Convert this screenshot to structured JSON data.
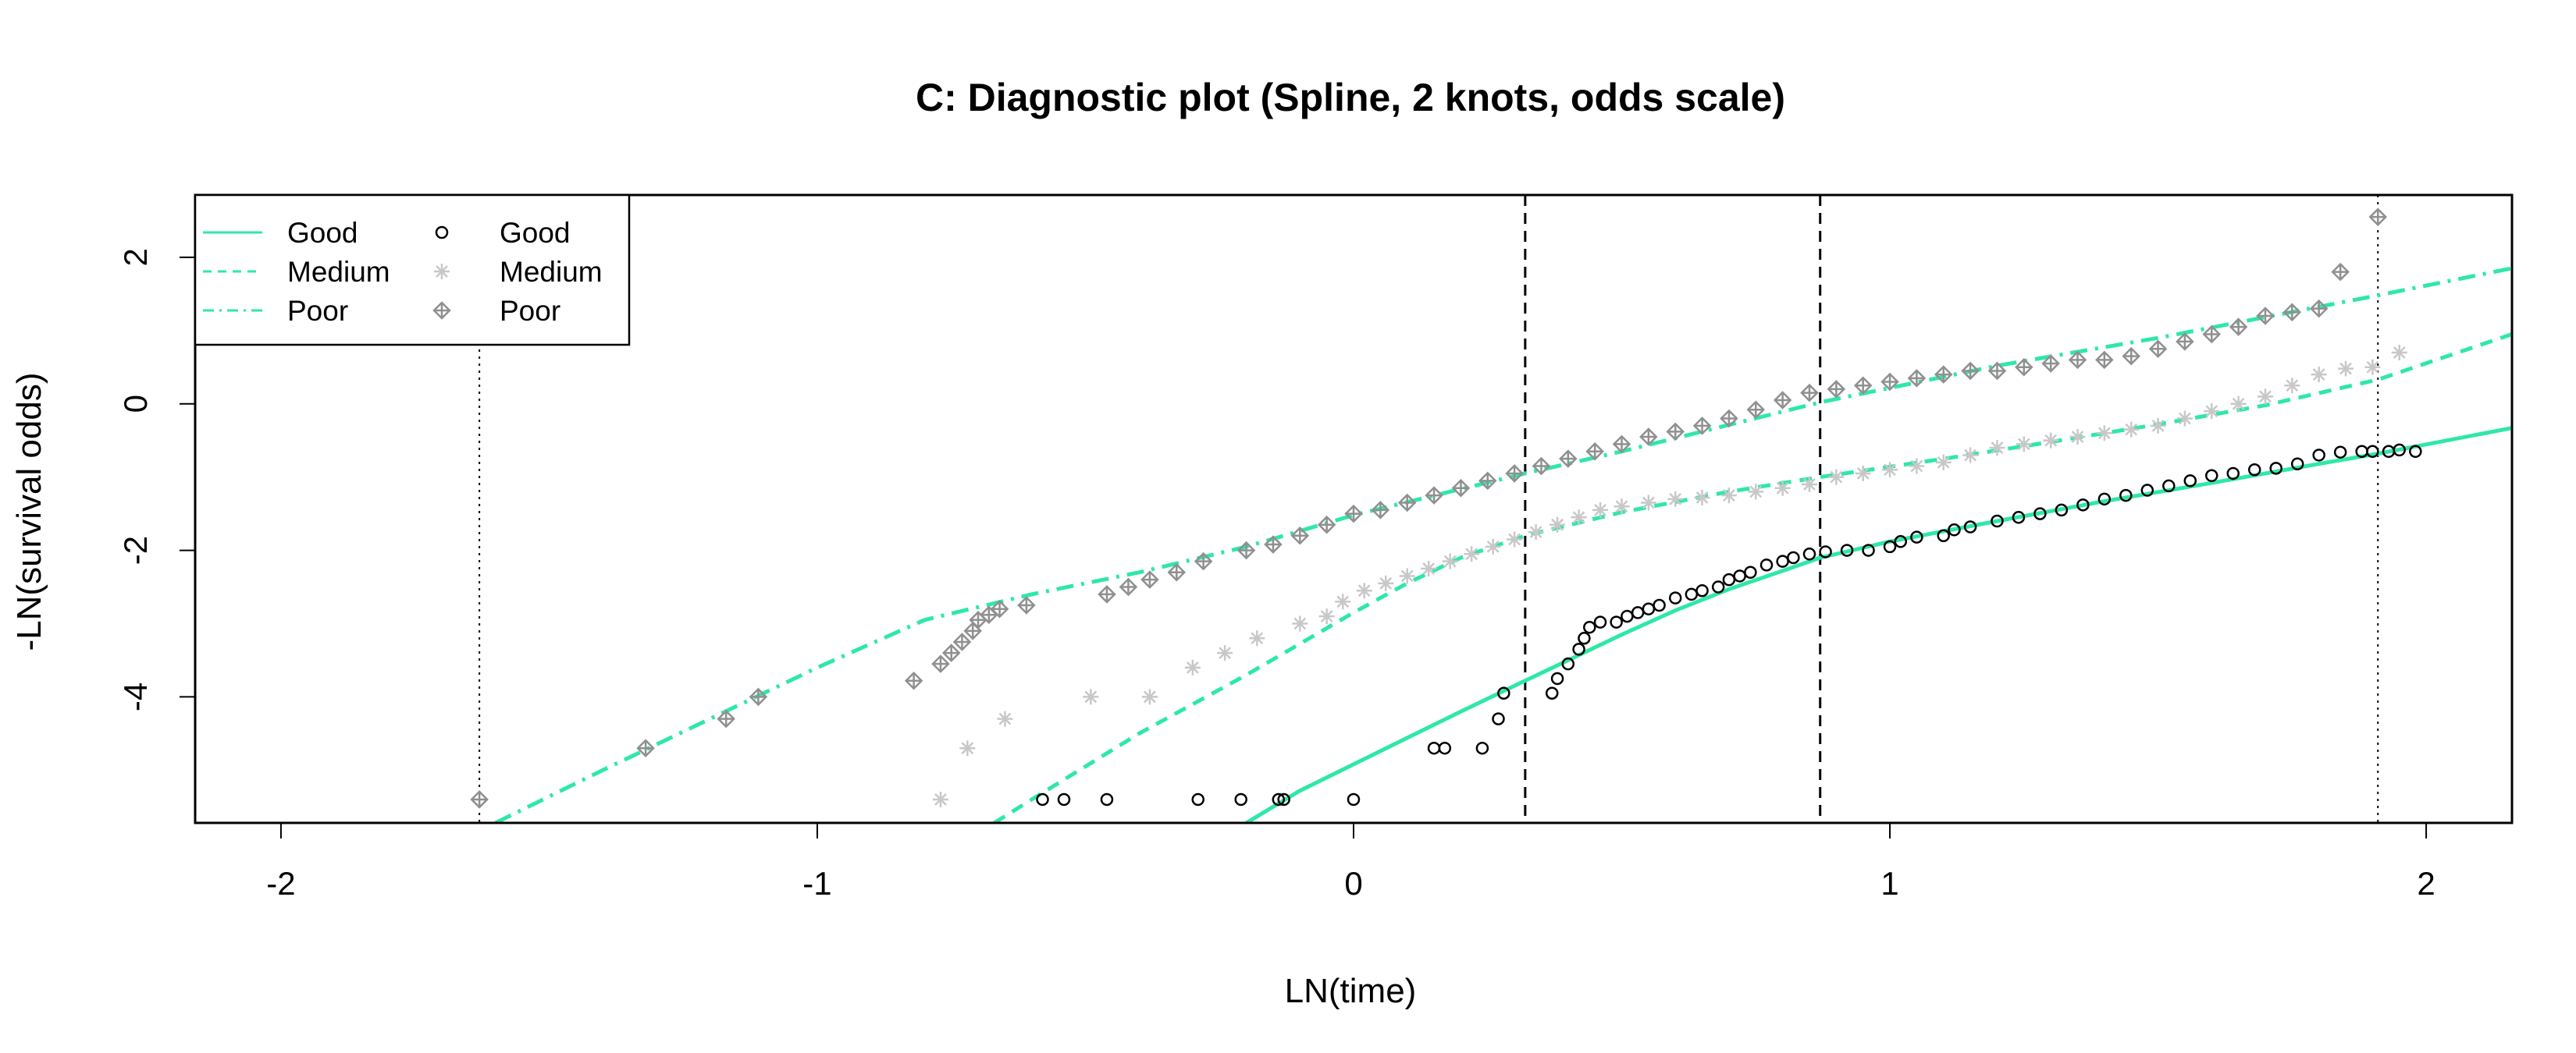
{
  "chart_data": {
    "type": "scatter",
    "title": "C: Diagnostic plot (Spline, 2 knots, odds scale)",
    "xlabel": "LN(time)",
    "ylabel": "-LN(survival odds)",
    "xlim": [
      -2.16,
      2.16
    ],
    "ylim": [
      -5.72,
      2.85
    ],
    "x_ticks": [
      -2,
      -1,
      0,
      1,
      2
    ],
    "y_ticks": [
      -4,
      -2,
      0,
      2
    ],
    "x_tick_labels": [
      "-2",
      "-1",
      "0",
      "1",
      "2"
    ],
    "y_tick_labels": [
      "-4",
      "-2",
      "0",
      "2"
    ],
    "grid": false,
    "legend_position": "top-left",
    "knot_lines": [
      0.32,
      0.87
    ],
    "boundary_lines": [
      -1.63,
      1.91
    ],
    "colors": {
      "line": "#2ee8a6",
      "good_points": "#000000",
      "medium_points": "#c8c8c8",
      "poor_points": "#909090"
    },
    "line_legend": [
      {
        "label": "Good",
        "style": "solid"
      },
      {
        "label": "Medium",
        "style": "dashed"
      },
      {
        "label": "Poor",
        "style": "dashdot"
      }
    ],
    "point_legend": [
      {
        "label": "Good",
        "marker": "circle"
      },
      {
        "label": "Medium",
        "marker": "asterisk"
      },
      {
        "label": "Poor",
        "marker": "diamond-plus"
      }
    ],
    "series_lines": [
      {
        "name": "Good",
        "style": "solid",
        "x": [
          -0.2,
          -0.1,
          0,
          0.1,
          0.2,
          0.3,
          0.4,
          0.5,
          0.6,
          0.7,
          0.8,
          0.87,
          1.0,
          1.2,
          1.4,
          1.6,
          1.8,
          1.91,
          2.16
        ],
        "y": [
          -5.72,
          -5.28,
          -4.92,
          -4.56,
          -4.2,
          -3.85,
          -3.5,
          -3.15,
          -2.82,
          -2.53,
          -2.28,
          -2.1,
          -1.88,
          -1.6,
          -1.33,
          -1.08,
          -0.82,
          -0.68,
          -0.33
        ]
      },
      {
        "name": "Medium",
        "style": "dashed",
        "x": [
          -0.67,
          -0.6,
          -0.4,
          -0.2,
          0,
          0.1,
          0.2,
          0.32,
          0.5,
          0.7,
          0.87,
          1.1,
          1.3,
          1.5,
          1.7,
          1.91,
          2.16
        ],
        "y": [
          -5.72,
          -5.4,
          -4.5,
          -3.7,
          -2.85,
          -2.45,
          -2.1,
          -1.8,
          -1.48,
          -1.2,
          -1.0,
          -0.75,
          -0.52,
          -0.28,
          -0.02,
          0.33,
          0.95
        ]
      },
      {
        "name": "Poor",
        "style": "dashdot",
        "x": [
          -1.6,
          -1.4,
          -1.2,
          -1.0,
          -0.8,
          -0.6,
          -0.4,
          -0.2,
          0,
          0.32,
          0.5,
          0.87,
          1.2,
          1.5,
          1.91,
          2.16
        ],
        "y": [
          -5.72,
          -5.0,
          -4.3,
          -3.6,
          -2.95,
          -2.6,
          -2.3,
          -1.95,
          -1.52,
          -0.95,
          -0.65,
          0.02,
          0.52,
          0.9,
          1.48,
          1.85
        ]
      }
    ],
    "series_points": [
      {
        "name": "Good",
        "marker": "circle",
        "x": [
          -0.58,
          -0.54,
          -0.46,
          -0.29,
          -0.21,
          -0.14,
          -0.13,
          0.0,
          0.15,
          0.17,
          0.24,
          0.27,
          0.28,
          0.37,
          0.38,
          0.4,
          0.42,
          0.43,
          0.44,
          0.46,
          0.49,
          0.51,
          0.53,
          0.55,
          0.57,
          0.6,
          0.63,
          0.65,
          0.68,
          0.7,
          0.72,
          0.74,
          0.77,
          0.8,
          0.82,
          0.85,
          0.88,
          0.92,
          0.96,
          1.0,
          1.02,
          1.05,
          1.1,
          1.12,
          1.15,
          1.2,
          1.24,
          1.28,
          1.32,
          1.36,
          1.4,
          1.44,
          1.48,
          1.52,
          1.56,
          1.6,
          1.64,
          1.68,
          1.72,
          1.76,
          1.8,
          1.84,
          1.88,
          1.9,
          1.93,
          1.95,
          1.98
        ],
        "y": [
          -5.4,
          -5.4,
          -5.4,
          -5.4,
          -5.4,
          -5.4,
          -5.4,
          -5.4,
          -4.7,
          -4.7,
          -4.7,
          -4.3,
          -3.95,
          -3.95,
          -3.75,
          -3.55,
          -3.35,
          -3.2,
          -3.05,
          -2.98,
          -2.98,
          -2.9,
          -2.85,
          -2.8,
          -2.75,
          -2.65,
          -2.6,
          -2.55,
          -2.5,
          -2.4,
          -2.35,
          -2.3,
          -2.2,
          -2.15,
          -2.1,
          -2.05,
          -2.02,
          -2.0,
          -2.0,
          -1.95,
          -1.88,
          -1.82,
          -1.8,
          -1.72,
          -1.68,
          -1.6,
          -1.55,
          -1.5,
          -1.45,
          -1.38,
          -1.3,
          -1.25,
          -1.18,
          -1.12,
          -1.05,
          -0.98,
          -0.95,
          -0.9,
          -0.88,
          -0.82,
          -0.7,
          -0.66,
          -0.65,
          -0.65,
          -0.65,
          -0.63,
          -0.65
        ]
      },
      {
        "name": "Medium",
        "marker": "asterisk",
        "x": [
          -0.77,
          -0.72,
          -0.65,
          -0.49,
          -0.38,
          -0.3,
          -0.24,
          -0.18,
          -0.1,
          -0.05,
          -0.02,
          0.02,
          0.06,
          0.1,
          0.14,
          0.18,
          0.22,
          0.26,
          0.3,
          0.34,
          0.38,
          0.42,
          0.46,
          0.5,
          0.55,
          0.6,
          0.65,
          0.7,
          0.75,
          0.8,
          0.85,
          0.9,
          0.95,
          1.0,
          1.05,
          1.1,
          1.15,
          1.2,
          1.25,
          1.3,
          1.35,
          1.4,
          1.45,
          1.5,
          1.55,
          1.6,
          1.65,
          1.7,
          1.75,
          1.8,
          1.85,
          1.9,
          1.95
        ],
        "y": [
          -5.4,
          -4.7,
          -4.3,
          -4.0,
          -4.0,
          -3.6,
          -3.4,
          -3.2,
          -3.0,
          -2.9,
          -2.7,
          -2.55,
          -2.45,
          -2.35,
          -2.25,
          -2.15,
          -2.05,
          -1.95,
          -1.85,
          -1.75,
          -1.65,
          -1.55,
          -1.45,
          -1.4,
          -1.35,
          -1.3,
          -1.28,
          -1.25,
          -1.2,
          -1.15,
          -1.1,
          -1.0,
          -0.95,
          -0.9,
          -0.85,
          -0.8,
          -0.7,
          -0.6,
          -0.55,
          -0.5,
          -0.45,
          -0.4,
          -0.35,
          -0.3,
          -0.2,
          -0.1,
          0.0,
          0.1,
          0.25,
          0.4,
          0.48,
          0.5,
          0.7
        ]
      },
      {
        "name": "Poor",
        "marker": "diamond-plus",
        "x": [
          -1.63,
          -1.32,
          -1.17,
          -1.11,
          -0.82,
          -0.77,
          -0.75,
          -0.73,
          -0.71,
          -0.7,
          -0.68,
          -0.66,
          -0.61,
          -0.46,
          -0.42,
          -0.38,
          -0.33,
          -0.28,
          -0.2,
          -0.15,
          -0.1,
          -0.05,
          0.0,
          0.05,
          0.1,
          0.15,
          0.2,
          0.25,
          0.3,
          0.35,
          0.4,
          0.45,
          0.5,
          0.55,
          0.6,
          0.65,
          0.7,
          0.75,
          0.8,
          0.85,
          0.9,
          0.95,
          1.0,
          1.05,
          1.1,
          1.15,
          1.2,
          1.25,
          1.3,
          1.35,
          1.4,
          1.45,
          1.5,
          1.55,
          1.6,
          1.65,
          1.7,
          1.75,
          1.8,
          1.84,
          1.91
        ],
        "y": [
          -5.4,
          -4.7,
          -4.3,
          -4.0,
          -3.78,
          -3.55,
          -3.4,
          -3.25,
          -3.1,
          -2.95,
          -2.88,
          -2.8,
          -2.75,
          -2.6,
          -2.5,
          -2.4,
          -2.3,
          -2.15,
          -2.0,
          -1.92,
          -1.8,
          -1.65,
          -1.5,
          -1.45,
          -1.35,
          -1.25,
          -1.15,
          -1.05,
          -0.95,
          -0.85,
          -0.75,
          -0.65,
          -0.55,
          -0.45,
          -0.38,
          -0.3,
          -0.2,
          -0.08,
          0.05,
          0.15,
          0.2,
          0.25,
          0.3,
          0.35,
          0.4,
          0.45,
          0.45,
          0.5,
          0.55,
          0.6,
          0.6,
          0.65,
          0.75,
          0.85,
          0.95,
          1.05,
          1.2,
          1.25,
          1.3,
          1.8,
          2.55
        ]
      }
    ]
  }
}
